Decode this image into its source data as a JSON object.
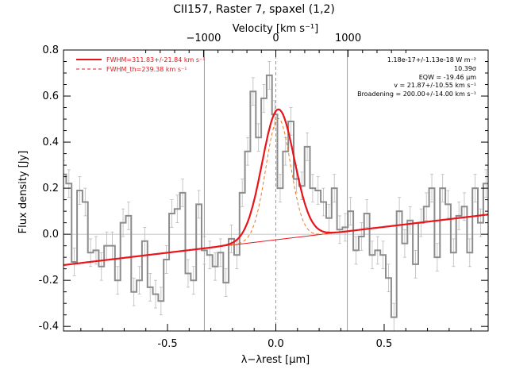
{
  "chart_data": {
    "type": "line",
    "title": "CII157, Raster 7, spaxel (1,2)",
    "xlabel": "λ−λrest [μm]",
    "ylabel": "Flux density [Jy]",
    "top_axis_label": "Velocity [km s⁻¹]",
    "xlim": [
      -0.98,
      0.98
    ],
    "ylim": [
      -0.42,
      0.8
    ],
    "x_ticks": [
      "-0.5",
      "0.0",
      "0.5"
    ],
    "x_tick_values": [
      -0.5,
      0.0,
      0.5
    ],
    "y_ticks": [
      "-0.4",
      "-0.2",
      "0.0",
      "0.2",
      "0.4",
      "0.6",
      "0.8"
    ],
    "y_tick_values": [
      -0.4,
      -0.2,
      0.0,
      0.2,
      0.4,
      0.6,
      0.8
    ],
    "top_ticks": [
      "−1000",
      "0",
      "1000"
    ],
    "top_tick_values": [
      -1000,
      0,
      1000
    ],
    "vertical_lines": [
      -0.33,
      0.0,
      0.33
    ],
    "legend": {
      "placement": "top-left",
      "items": [
        {
          "label": "FWHM=311.83+/-21.84 km s⁻¹",
          "color": "#e8141a",
          "style": "solid"
        },
        {
          "label": "FWHM_th=239.38 km s⁻¹",
          "color": "#e8141a",
          "style": "dashed"
        }
      ]
    },
    "annotations": [
      "1.18e-17+/-1.13e-18 W m⁻²",
      "10.39σ",
      "EQW = -19.46 μm",
      "v = 21.87+/-10.55 km s⁻¹",
      "Broadening = 200.00+/-14.00 km s⁻¹"
    ],
    "data_series": {
      "name": "",
      "color": "#8c8c8c",
      "x": [
        -0.98,
        -0.955,
        -0.93,
        -0.905,
        -0.88,
        -0.855,
        -0.83,
        -0.805,
        -0.78,
        -0.755,
        -0.73,
        -0.705,
        -0.68,
        -0.655,
        -0.63,
        -0.605,
        -0.58,
        -0.555,
        -0.53,
        -0.505,
        -0.48,
        -0.455,
        -0.43,
        -0.405,
        -0.38,
        -0.355,
        -0.33,
        -0.305,
        -0.28,
        -0.255,
        -0.23,
        -0.205,
        -0.18,
        -0.155,
        -0.13,
        -0.105,
        -0.08,
        -0.055,
        -0.03,
        -0.005,
        0.02,
        0.045,
        0.07,
        0.095,
        0.12,
        0.145,
        0.17,
        0.195,
        0.22,
        0.245,
        0.27,
        0.295,
        0.32,
        0.345,
        0.37,
        0.395,
        0.42,
        0.445,
        0.47,
        0.495,
        0.52,
        0.545,
        0.57,
        0.595,
        0.62,
        0.645,
        0.67,
        0.695,
        0.72,
        0.745,
        0.77,
        0.795,
        0.82,
        0.845,
        0.87,
        0.895,
        0.92,
        0.945,
        0.97
      ],
      "y": [
        0.26,
        0.22,
        -0.12,
        0.19,
        0.14,
        -0.08,
        -0.07,
        -0.14,
        -0.05,
        -0.05,
        -0.2,
        0.05,
        0.08,
        -0.25,
        -0.2,
        -0.03,
        -0.23,
        -0.26,
        -0.29,
        -0.11,
        0.09,
        0.11,
        0.18,
        -0.17,
        -0.2,
        0.13,
        -0.07,
        -0.09,
        -0.14,
        -0.08,
        -0.21,
        -0.02,
        -0.09,
        0.18,
        0.36,
        0.62,
        0.42,
        0.59,
        0.69,
        0.52,
        0.2,
        0.36,
        0.49,
        0.24,
        0.21,
        0.38,
        0.2,
        0.19,
        0.14,
        0.07,
        0.2,
        0.02,
        0.03,
        0.1,
        -0.07,
        -0.01,
        0.09,
        -0.09,
        -0.07,
        -0.09,
        -0.19,
        -0.36,
        0.1,
        -0.04,
        0.06,
        -0.13,
        0.05,
        0.12,
        0.2,
        -0.1,
        0.2,
        0.13,
        -0.08,
        0.08,
        0.12,
        -0.08,
        0.2,
        0.05,
        0.22
      ],
      "err": 0.06
    },
    "fit_total": {
      "color": "#e8141a",
      "amplitude": 0.565,
      "center": 0.011,
      "sigma": 0.074,
      "baseline": {
        "slope": 0.112,
        "intercept": -0.024
      }
    },
    "fit_thermal": {
      "color": "#e8141a",
      "amplitude": 0.525,
      "center": 0.011,
      "sigma": 0.057
    },
    "baseline_color": "#e8141a"
  }
}
